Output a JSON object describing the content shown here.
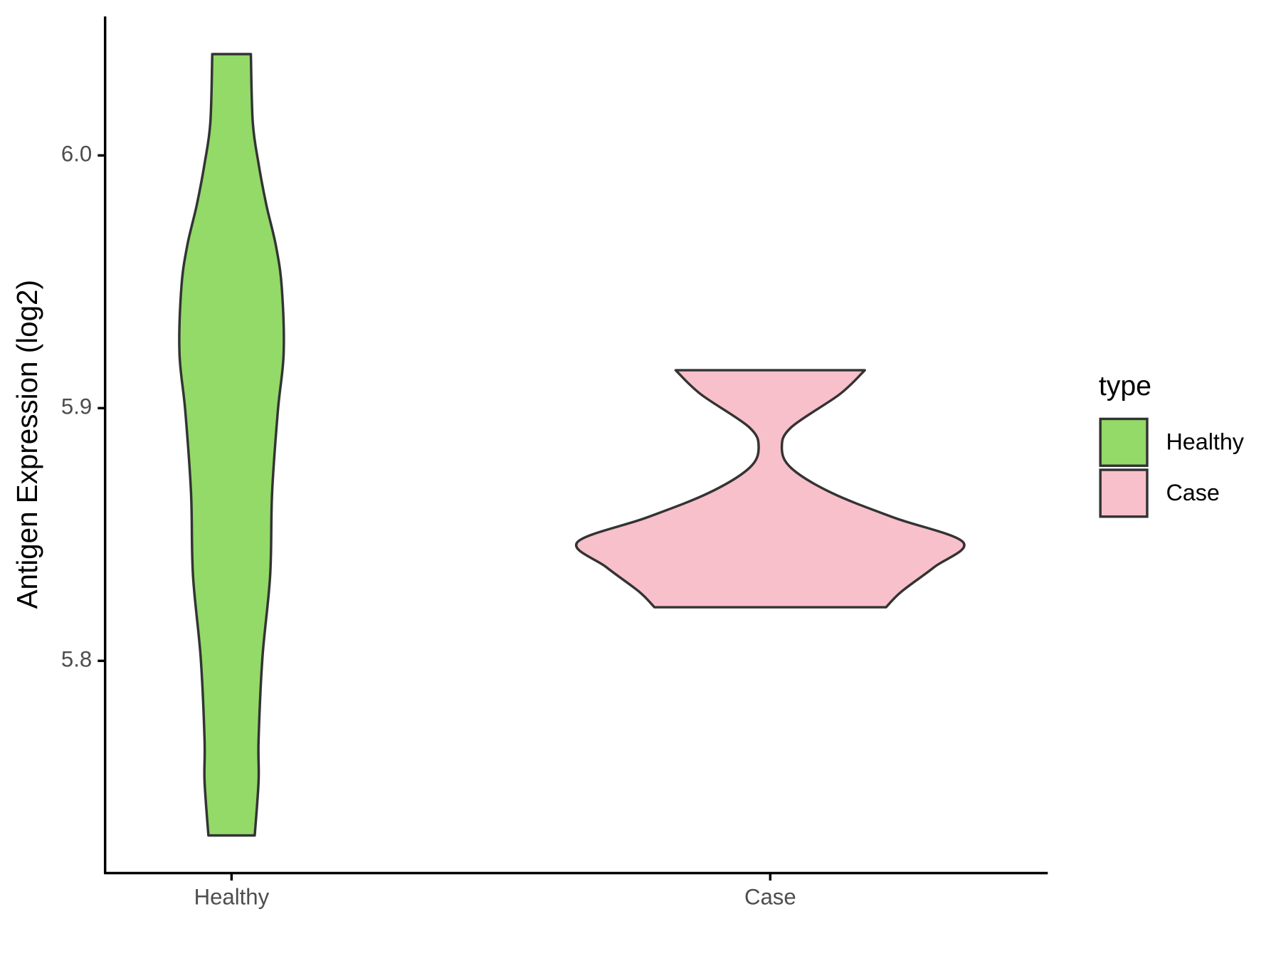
{
  "chart_data": {
    "type": "violin",
    "y_label": "Antigen Expression (log2)",
    "categories": [
      "Healthy",
      "Case"
    ],
    "legend_title": "type",
    "legend_position": "right",
    "ylim": [
      5.716,
      6.055
    ],
    "yticks": [
      5.8,
      5.9,
      {
        "value": 6.0,
        "label": "6.0"
      }
    ],
    "series": [
      {
        "name": "Healthy",
        "color": "#93DA69",
        "y": [
          6.0401,
          6.013,
          5.9967,
          5.9805,
          5.9642,
          5.9479,
          5.9218,
          5.899,
          5.8664,
          5.8339,
          5.8013,
          5.7687,
          5.7524,
          5.7309
        ],
        "width": [
          0.1,
          0.11,
          0.14,
          0.18,
          0.23,
          0.26,
          0.27,
          0.24,
          0.21,
          0.2,
          0.16,
          0.14,
          0.14,
          0.12
        ]
      },
      {
        "name": "Case",
        "color": "#F8C0CB",
        "y": [
          5.915,
          5.9055,
          5.8925,
          5.8844,
          5.8762,
          5.8664,
          5.8567,
          5.8469,
          5.8371,
          5.8274,
          5.8212
        ],
        "width": [
          0.49,
          0.36,
          0.11,
          0.06,
          0.11,
          0.32,
          0.64,
          1.0,
          0.85,
          0.68,
          0.6
        ]
      }
    ]
  }
}
